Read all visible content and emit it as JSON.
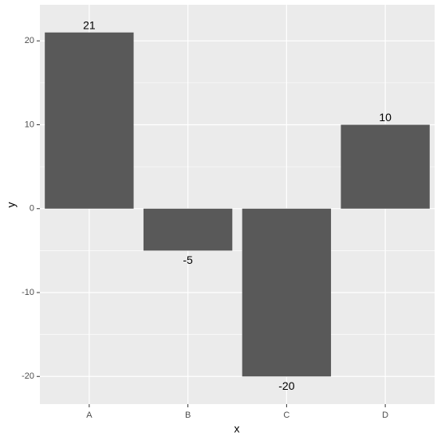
{
  "chart_data": {
    "type": "bar",
    "x_label": "x",
    "y_label": "y",
    "categories": [
      "A",
      "B",
      "C",
      "D"
    ],
    "values": [
      21,
      -5,
      -20,
      10
    ],
    "color": "#595959",
    "ylim": [
      -23.3,
      24.3
    ],
    "yticks": [
      -20,
      -10,
      0,
      10,
      20
    ],
    "grid": true
  }
}
